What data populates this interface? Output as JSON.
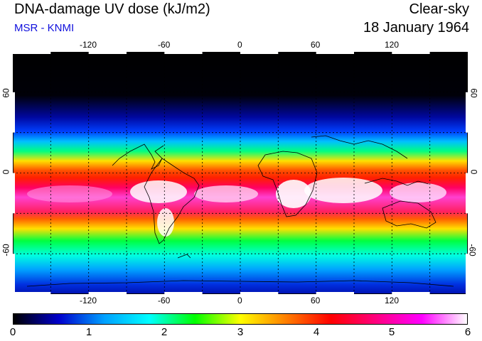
{
  "header": {
    "title": "DNA-damage UV dose (kJ/m2)",
    "credit": "MSR - KNMI",
    "sky_condition": "Clear-sky",
    "date": "18 January 1964"
  },
  "map": {
    "projection": "equirectangular",
    "longitude_ticks": [
      "-120",
      "-60",
      "0",
      "60",
      "120"
    ],
    "latitude_ticks": [
      "60",
      "0",
      "-60"
    ],
    "gridlines": "dashed every 30 degrees",
    "field": "UV dose colour field, low at high northern latitudes, highest (white/magenta) over southern tropics"
  },
  "colorbar": {
    "labels": [
      "0",
      "1",
      "2",
      "3",
      "4",
      "5",
      "6"
    ],
    "colors": [
      "#000000",
      "#0000cc",
      "#00a0ff",
      "#00ffff",
      "#00ff00",
      "#ffff00",
      "#ff8000",
      "#ff0000",
      "#ff0080",
      "#ff00ff",
      "#ffffff"
    ]
  }
}
